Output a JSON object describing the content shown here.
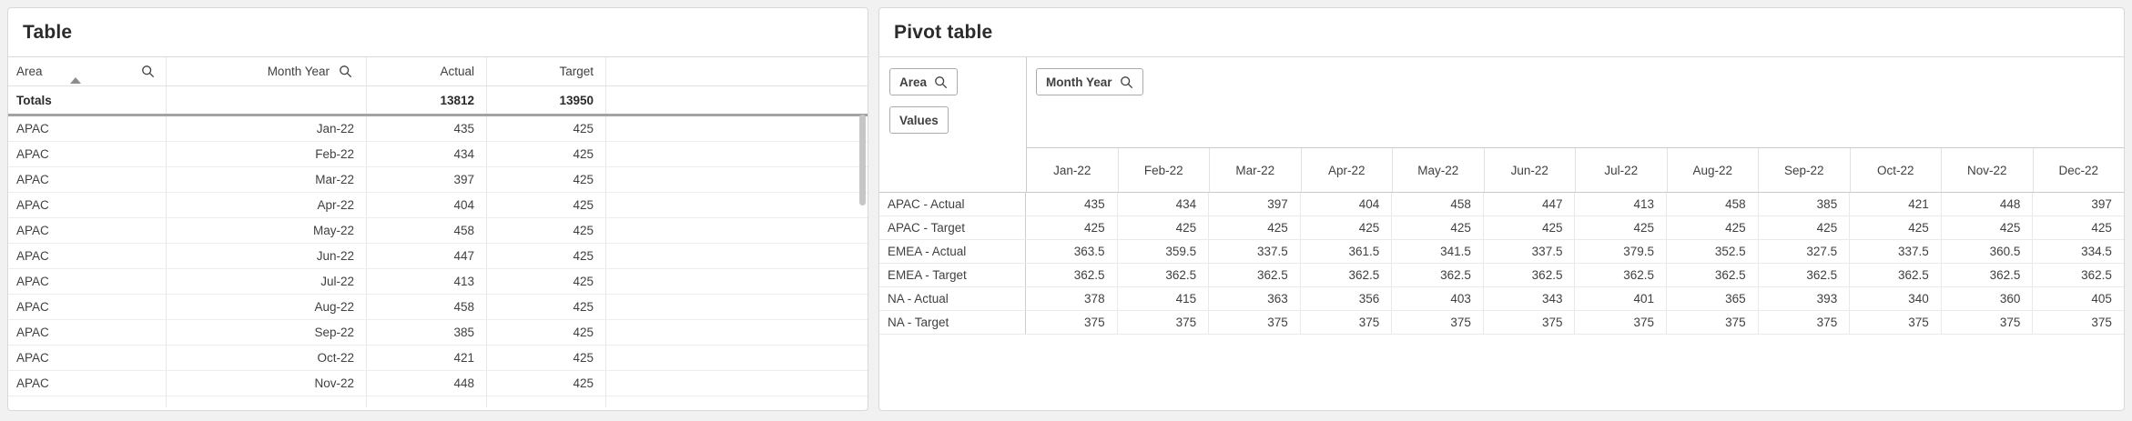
{
  "colors": {
    "background": "#f1f1f1",
    "text": "#404040",
    "title_text": "#2b2b2b"
  },
  "left_table": {
    "title": "Table",
    "columns": {
      "area": {
        "label": "Area",
        "has_search": true,
        "sort": "ascending"
      },
      "month": {
        "label": "Month Year",
        "has_search": true
      },
      "actual": {
        "label": "Actual"
      },
      "target": {
        "label": "Target"
      },
      "empty": {
        "label": ""
      }
    },
    "totals": {
      "label": "Totals",
      "actual": "13812",
      "target": "13950"
    },
    "rows": [
      {
        "area": "APAC",
        "month": "Jan-22",
        "actual": "435",
        "target": "425"
      },
      {
        "area": "APAC",
        "month": "Feb-22",
        "actual": "434",
        "target": "425"
      },
      {
        "area": "APAC",
        "month": "Mar-22",
        "actual": "397",
        "target": "425"
      },
      {
        "area": "APAC",
        "month": "Apr-22",
        "actual": "404",
        "target": "425"
      },
      {
        "area": "APAC",
        "month": "May-22",
        "actual": "458",
        "target": "425"
      },
      {
        "area": "APAC",
        "month": "Jun-22",
        "actual": "447",
        "target": "425"
      },
      {
        "area": "APAC",
        "month": "Jul-22",
        "actual": "413",
        "target": "425"
      },
      {
        "area": "APAC",
        "month": "Aug-22",
        "actual": "458",
        "target": "425"
      },
      {
        "area": "APAC",
        "month": "Sep-22",
        "actual": "385",
        "target": "425"
      },
      {
        "area": "APAC",
        "month": "Oct-22",
        "actual": "421",
        "target": "425"
      },
      {
        "area": "APAC",
        "month": "Nov-22",
        "actual": "448",
        "target": "425"
      }
    ]
  },
  "pivot_table": {
    "title": "Pivot table",
    "row_dimension_button": "Area",
    "values_button": "Values",
    "column_dimension_button": "Month Year",
    "columns": [
      "Jan-22",
      "Feb-22",
      "Mar-22",
      "Apr-22",
      "May-22",
      "Jun-22",
      "Jul-22",
      "Aug-22",
      "Sep-22",
      "Oct-22",
      "Nov-22",
      "Dec-22"
    ],
    "rows": [
      {
        "label": "APAC - Actual",
        "values": [
          "435",
          "434",
          "397",
          "404",
          "458",
          "447",
          "413",
          "458",
          "385",
          "421",
          "448",
          "397"
        ]
      },
      {
        "label": "APAC - Target",
        "values": [
          "425",
          "425",
          "425",
          "425",
          "425",
          "425",
          "425",
          "425",
          "425",
          "425",
          "425",
          "425"
        ]
      },
      {
        "label": "EMEA - Actual",
        "values": [
          "363.5",
          "359.5",
          "337.5",
          "361.5",
          "341.5",
          "337.5",
          "379.5",
          "352.5",
          "327.5",
          "337.5",
          "360.5",
          "334.5"
        ]
      },
      {
        "label": "EMEA - Target",
        "values": [
          "362.5",
          "362.5",
          "362.5",
          "362.5",
          "362.5",
          "362.5",
          "362.5",
          "362.5",
          "362.5",
          "362.5",
          "362.5",
          "362.5"
        ]
      },
      {
        "label": "NA - Actual",
        "values": [
          "378",
          "415",
          "363",
          "356",
          "403",
          "343",
          "401",
          "365",
          "393",
          "340",
          "360",
          "405"
        ]
      },
      {
        "label": "NA - Target",
        "values": [
          "375",
          "375",
          "375",
          "375",
          "375",
          "375",
          "375",
          "375",
          "375",
          "375",
          "375",
          "375"
        ]
      }
    ]
  }
}
